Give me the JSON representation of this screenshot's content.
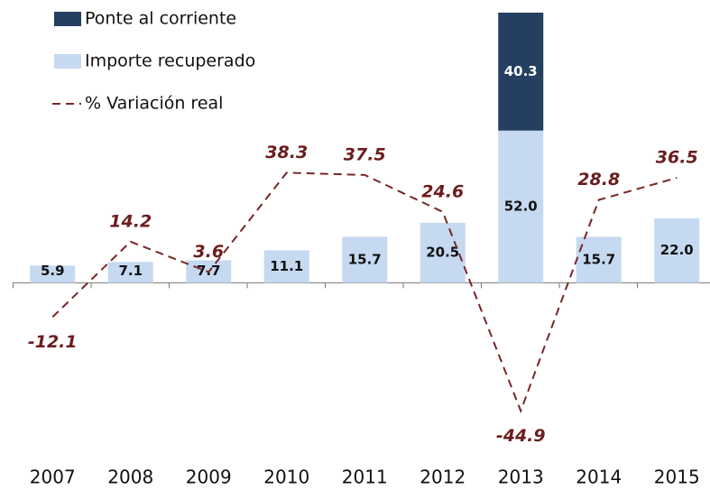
{
  "chart_data": {
    "type": "bar",
    "categories": [
      "2007",
      "2008",
      "2009",
      "2010",
      "2011",
      "2012",
      "2013",
      "2014",
      "2015"
    ],
    "series": [
      {
        "name": "Ponte al corriente",
        "type": "bar",
        "color": "#243f60",
        "values": [
          null,
          null,
          null,
          null,
          null,
          null,
          40.3,
          null,
          null
        ],
        "value_labels": [
          null,
          null,
          null,
          null,
          null,
          null,
          "40.3",
          null,
          null
        ]
      },
      {
        "name": "Importe recuperado",
        "type": "bar",
        "color": "#c5d9f1",
        "values": [
          5.9,
          7.1,
          7.7,
          11.1,
          15.7,
          20.5,
          52.0,
          15.7,
          22.0
        ],
        "value_labels": [
          "5.9",
          "7.1",
          "7.7",
          "11.1",
          "15.7",
          "20.5",
          "52.0",
          "15.7",
          "22.0"
        ]
      },
      {
        "name": "% Variación real",
        "type": "line",
        "axis": "y2",
        "color": "#7a2626",
        "values": [
          -12.1,
          14.2,
          3.6,
          38.3,
          37.5,
          24.6,
          -44.9,
          28.8,
          36.5
        ]
      }
    ],
    "ylim": [
      -60,
      92.3
    ],
    "y2lim": [
      -61.5,
      94.2
    ],
    "legend": "top-left"
  }
}
